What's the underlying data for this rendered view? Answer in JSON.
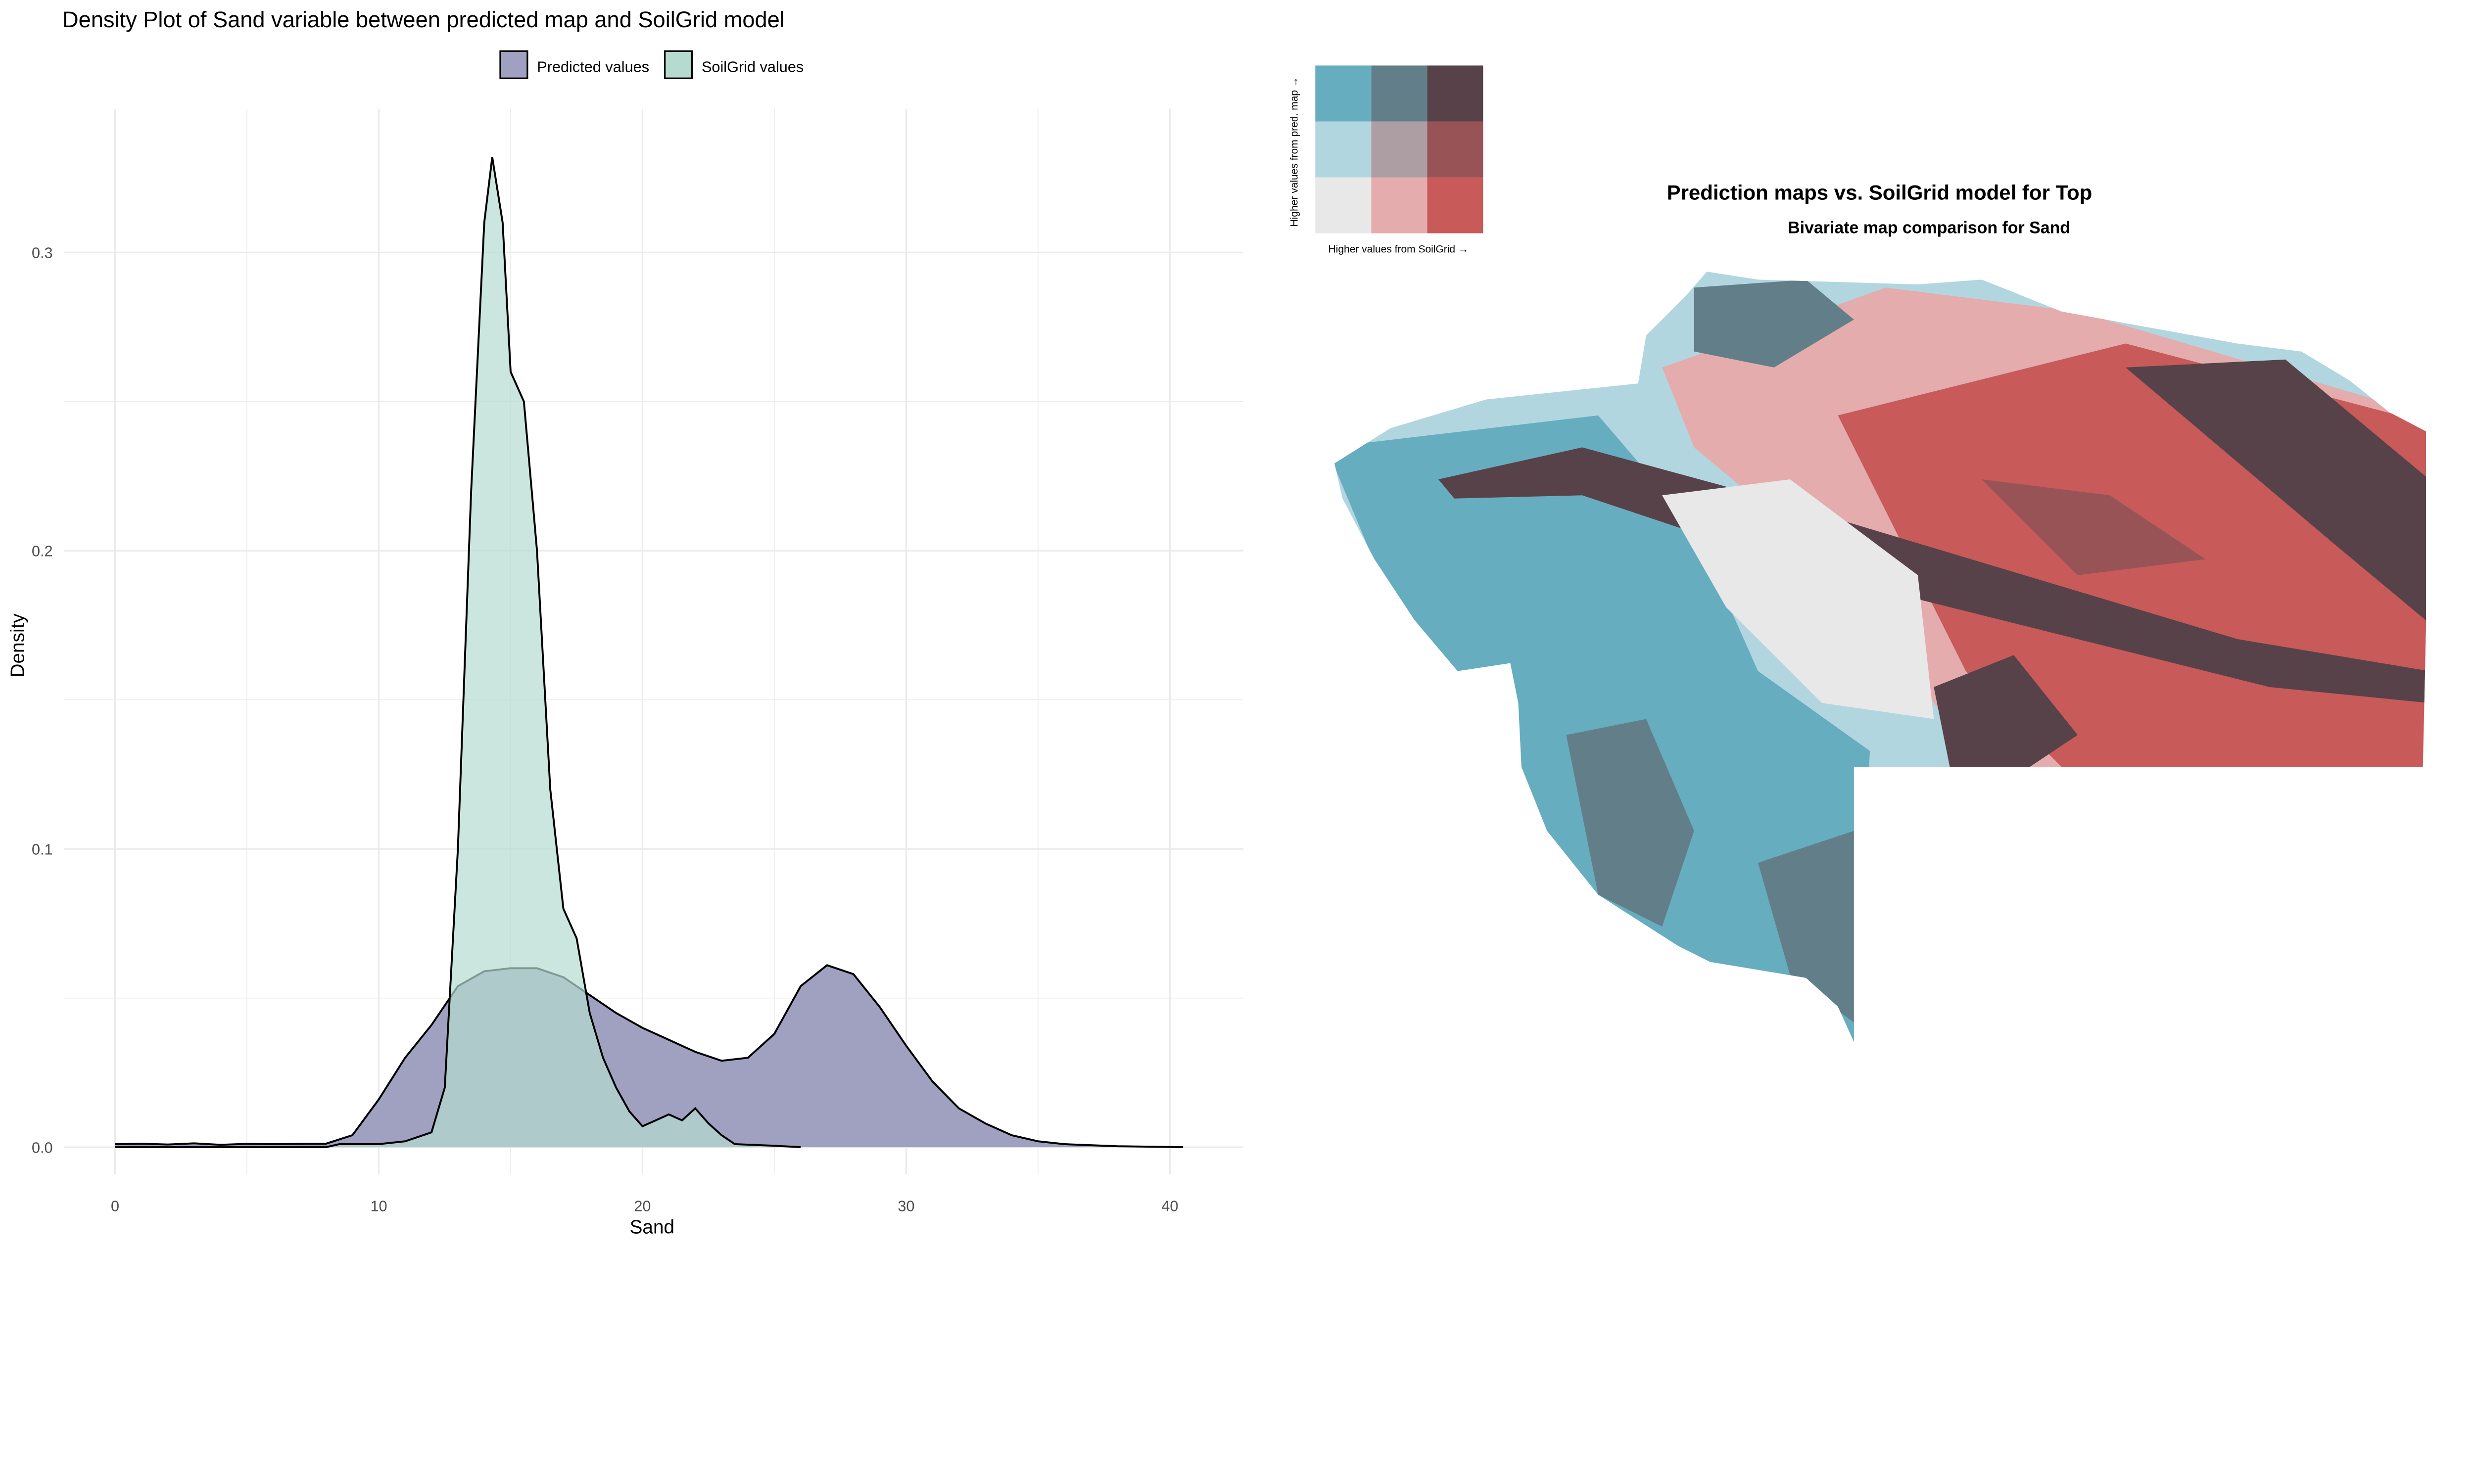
{
  "chart_data": [
    {
      "type": "area",
      "title": "Density Plot of Sand variable between predicted map and SoilGrid model",
      "xlabel": "Sand",
      "ylabel": "Density",
      "xlim": [
        -4,
        42.5
      ],
      "ylim": [
        -0.015,
        0.348
      ],
      "xticks": [
        0,
        10,
        20,
        30,
        40
      ],
      "xtick_labels": [
        "0",
        "10",
        "20",
        "30",
        "40"
      ],
      "yticks": [
        0,
        0.1,
        0.2,
        0.3
      ],
      "ytick_labels": [
        "0.0",
        "0.1",
        "0.2",
        "0.3"
      ],
      "grid": true,
      "legend_position": "top",
      "series": [
        {
          "name": "Predicted values",
          "color": "#a0a0c0",
          "x": [
            0,
            1,
            2,
            3,
            4,
            5,
            6,
            7,
            8,
            9,
            10,
            11,
            12,
            13,
            14,
            15,
            16,
            17,
            18,
            19,
            20,
            21,
            22,
            23,
            24,
            25,
            26,
            27,
            28,
            29,
            30,
            31,
            32,
            33,
            34,
            35,
            36,
            38,
            40.5
          ],
          "y": [
            0.001,
            0.0012,
            0.0009,
            0.0013,
            0.0008,
            0.0011,
            0.001,
            0.0011,
            0.0012,
            0.004,
            0.016,
            0.03,
            0.041,
            0.054,
            0.059,
            0.06,
            0.06,
            0.057,
            0.051,
            0.045,
            0.04,
            0.036,
            0.032,
            0.029,
            0.03,
            0.038,
            0.054,
            0.061,
            0.058,
            0.047,
            0.034,
            0.022,
            0.013,
            0.008,
            0.004,
            0.002,
            0.001,
            0.0003,
            0
          ]
        },
        {
          "name": "SoilGrid values",
          "color": "#b5dbd0",
          "x": [
            0,
            4,
            8,
            8.5,
            10,
            11,
            12,
            12.5,
            13,
            13.5,
            14,
            14.3,
            14.7,
            15,
            15.5,
            16,
            16.5,
            17,
            17.5,
            18,
            18.5,
            19,
            19.5,
            20,
            20.5,
            21,
            21.5,
            22,
            22.5,
            23,
            23.5,
            25,
            26
          ],
          "y": [
            0,
            0,
            0,
            0.001,
            0.001,
            0.002,
            0.005,
            0.02,
            0.1,
            0.22,
            0.31,
            0.332,
            0.31,
            0.26,
            0.25,
            0.2,
            0.12,
            0.08,
            0.07,
            0.045,
            0.03,
            0.02,
            0.012,
            0.007,
            0.009,
            0.011,
            0.009,
            0.013,
            0.008,
            0.004,
            0.001,
            0.0005,
            0
          ]
        }
      ]
    }
  ],
  "map": {
    "title": "Prediction maps vs. SoilGrid model for Top",
    "subtitle": "Bivariate map comparison for Sand",
    "legend_y_label": "Higher values from pred. map →",
    "legend_x_label": "Higher values from SoilGrid →",
    "legend_colors": [
      [
        "#66adbf",
        "#627f89",
        "#574249"
      ],
      [
        "#b1d6df",
        "#ad9ea3",
        "#985356"
      ],
      [
        "#e8e8e8",
        "#e4acad",
        "#c85a5a"
      ]
    ]
  }
}
